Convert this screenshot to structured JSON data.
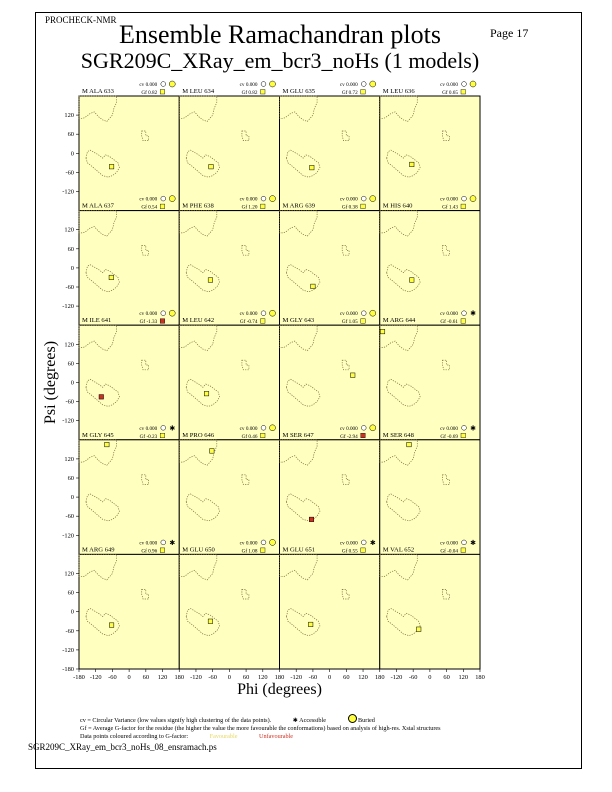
{
  "header": {
    "program": "PROCHECK-NMR",
    "page": "Page 17",
    "title": "Ensemble Ramachandran plots",
    "subtitle": "SGR209C_XRay_em_bcr3_noHs (1 models)"
  },
  "footer": {
    "filename": "SGR209C_XRay_em_bcr3_noHs_08_ensramach.ps"
  },
  "legend": {
    "cv_text": "cv = Circular Variance (low values signify high clustering of the data points).",
    "accessible": "Accessible",
    "buried": "Buried",
    "gf_text": "Gf = Average G-factor for the residue (the higher the value the more favourable the conformations) based on analysis of high-res. Xstal structures",
    "colour_text": "Data points coloured according to G-factor:",
    "favourable": "Favourable",
    "unfavourable": "Unfavourable"
  },
  "colors": {
    "panel_bg": "#ffffc0",
    "favourable": "#ffff40",
    "unfavourable": "#d03020",
    "region_outline": "#7a6a3a"
  },
  "chart_data": {
    "type": "scatter",
    "layout": "grid 5 rows x 4 columns",
    "xlabel": "Phi (degrees)",
    "ylabel": "Psi (degrees)",
    "xlim": [
      -180,
      180
    ],
    "ylim": [
      -180,
      180
    ],
    "panel_y_ticks": [
      "120",
      "60",
      "0",
      "-60",
      "-120"
    ],
    "bottom_y_tick": "-180",
    "x_tick_labels": [
      "-180",
      "-120",
      "-60",
      "0",
      "60",
      "120",
      "180"
    ],
    "panels": [
      {
        "label": "M ALA 633",
        "cv": "cv 0.000",
        "gf": "Gf  0.82",
        "access": "buried",
        "phi": -63,
        "psi": -42,
        "fav": true
      },
      {
        "label": "M LEU 634",
        "cv": "cv 0.000",
        "gf": "Gf  0.82",
        "access": "buried",
        "phi": -66,
        "psi": -42,
        "fav": true
      },
      {
        "label": "M GLU 635",
        "cv": "cv 0.000",
        "gf": "Gf  0.72",
        "access": "buried",
        "phi": -64,
        "psi": -45,
        "fav": true
      },
      {
        "label": "M LEU 636",
        "cv": "cv 0.000",
        "gf": "Gf  0.65",
        "access": "buried",
        "phi": -65,
        "psi": -35,
        "fav": true
      },
      {
        "label": "M ALA 637",
        "cv": "cv 0.000",
        "gf": "Gf  0.54",
        "access": "buried",
        "phi": -64,
        "psi": -30,
        "fav": true
      },
      {
        "label": "M PHE 638",
        "cv": "cv 0.000",
        "gf": "Gf  1.20",
        "access": "buried",
        "phi": -68,
        "psi": -38,
        "fav": true
      },
      {
        "label": "M ARG 639",
        "cv": "cv 0.000",
        "gf": "Gf  0.38",
        "access": "buried",
        "phi": -60,
        "psi": -58,
        "fav": true
      },
      {
        "label": "M HIS 640",
        "cv": "cv 0.000",
        "gf": "Gf  1.43",
        "access": "buried",
        "phi": -65,
        "psi": -38,
        "fav": true
      },
      {
        "label": "M ILE 641",
        "cv": "cv 0.000",
        "gf": "Gf -1.33",
        "access": "buried",
        "phi": -100,
        "psi": -45,
        "fav": false
      },
      {
        "label": "M LEU 642",
        "cv": "cv 0.000",
        "gf": "Gf -0.74",
        "access": "buried",
        "phi": -82,
        "psi": -35,
        "fav": true
      },
      {
        "label": "M GLY 643",
        "cv": "cv 0.000",
        "gf": "Gf  1.05",
        "access": "buried",
        "phi": 83,
        "psi": 23,
        "fav": true
      },
      {
        "label": "M ARG 644",
        "cv": "cv 0.000",
        "gf": "Gf -0.61",
        "access": "accessible",
        "phi": -170,
        "psi": 160,
        "fav": true
      },
      {
        "label": "M GLY 645",
        "cv": "cv 0.000",
        "gf": "Gf -0.23",
        "access": "accessible",
        "phi": -80,
        "psi": 165,
        "fav": true
      },
      {
        "label": "M PRO 646",
        "cv": "cv 0.000",
        "gf": "Gf  0.46",
        "access": "buried",
        "phi": -63,
        "psi": 145,
        "fav": true
      },
      {
        "label": "M SER 647",
        "cv": "cv 0.000",
        "gf": "Gf -2.94",
        "access": "buried",
        "phi": -65,
        "psi": -70,
        "fav": false
      },
      {
        "label": "M SER 648",
        "cv": "cv 0.000",
        "gf": "Gf -0.69",
        "access": "accessible",
        "phi": -75,
        "psi": 165,
        "fav": true
      },
      {
        "label": "M ARG 649",
        "cv": "cv 0.000",
        "gf": "Gf  0.96",
        "access": "accessible",
        "phi": -63,
        "psi": -42,
        "fav": true
      },
      {
        "label": "M GLU 650",
        "cv": "cv 0.000",
        "gf": "Gf  1.08",
        "access": "buried",
        "phi": -68,
        "psi": -30,
        "fav": true
      },
      {
        "label": "M GLU 651",
        "cv": "cv 0.000",
        "gf": "Gf  0.55",
        "access": "accessible",
        "phi": -68,
        "psi": -40,
        "fav": true
      },
      {
        "label": "M VAL 652",
        "cv": "cv 0.000",
        "gf": "Gf -0.04",
        "access": "accessible",
        "phi": -40,
        "psi": -55,
        "fav": true
      }
    ]
  }
}
